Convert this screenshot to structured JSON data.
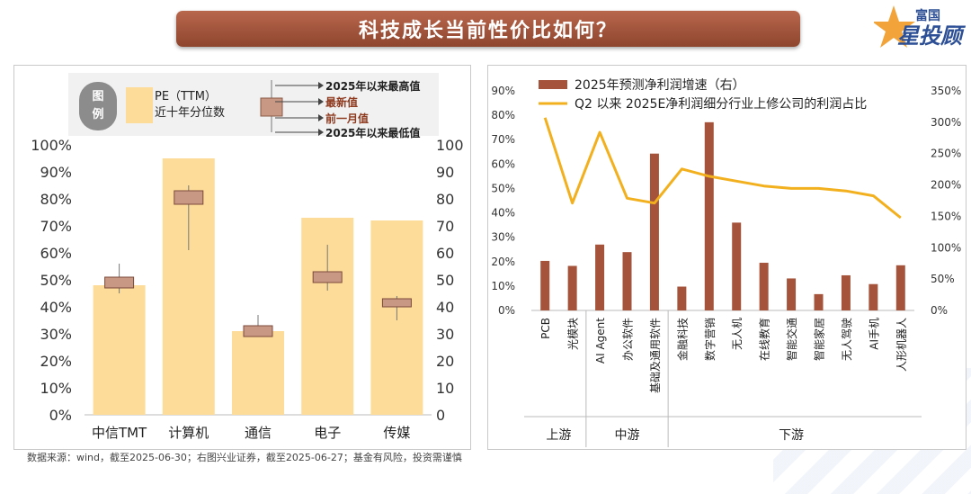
{
  "title": "科技成长当前性价比如何？",
  "logo": {
    "top": "富国",
    "bottom": "星投顾"
  },
  "source": "数据来源：wind，截至2025-06-30；右图兴业证券，截至2025-06-27；基金有风险，投资需谨慎",
  "colors": {
    "bar": "#fddc9a",
    "box": "#c89884",
    "line": "#f2b01e",
    "rbar": "#a5543b",
    "title": "#a85a40"
  },
  "chart_data": [
    {
      "type": "bar",
      "legend": {
        "label": "图例",
        "bar_label": [
          "PE（TTM）",
          "近十年分位数"
        ],
        "max_label": "2025年以来最高值",
        "latest_label": "最新值",
        "month_label": "前一月值",
        "min_label": "2025年以来最低值"
      },
      "categories": [
        "中信TMT",
        "计算机",
        "通信",
        "电子",
        "传媒"
      ],
      "series": [
        {
          "values": [
            48,
            95,
            31,
            73,
            72
          ]
        }
      ],
      "candles": [
        {
          "max": 56,
          "top": 51,
          "bottom": 47,
          "min": 45
        },
        {
          "max": 85,
          "top": 83,
          "bottom": 78,
          "min": 61
        },
        {
          "max": 37,
          "top": 33,
          "bottom": 29,
          "min": 29
        },
        {
          "max": 63,
          "top": 53,
          "bottom": 49,
          "min": 46
        },
        {
          "max": 44,
          "top": 43,
          "bottom": 40,
          "min": 35
        }
      ],
      "y_left_ticks": [
        "0%",
        "10%",
        "20%",
        "30%",
        "40%",
        "50%",
        "60%",
        "70%",
        "80%",
        "90%",
        "100%"
      ],
      "y_right_ticks": [
        "0",
        "10",
        "20",
        "30",
        "40",
        "50",
        "60",
        "70",
        "80",
        "90",
        "100"
      ],
      "ylim": [
        0,
        100
      ]
    },
    {
      "type": "bar+line",
      "categories": [
        "PCB",
        "光模块",
        "AI Agent",
        "办公软件",
        "基础及通用软件",
        "金融科技",
        "数字营销",
        "无人机",
        "在线教育",
        "智能交通",
        "智能家居",
        "无人驾驶",
        "AI手机",
        "人形机器人"
      ],
      "groups": [
        {
          "label": "上游",
          "count": 2
        },
        {
          "label": "中游",
          "count": 3
        },
        {
          "label": "下游",
          "count": 9
        }
      ],
      "series": [
        {
          "name": "2025年预测净利润增速（右）",
          "type": "bar",
          "axis": "right",
          "values": [
            79,
            71,
            105,
            93,
            250,
            38,
            300,
            140,
            76,
            51,
            26,
            56,
            42,
            72
          ]
        },
        {
          "name": "Q2 以来 2025E净利润细分行业上修公司的利润占比",
          "type": "line",
          "axis": "left",
          "values": [
            0.79,
            0.44,
            0.73,
            0.46,
            0.44,
            0.58,
            0.55,
            0.53,
            0.51,
            0.5,
            0.5,
            0.49,
            0.47,
            0.38
          ]
        }
      ],
      "y_left_ticks": [
        "0%",
        "10%",
        "20%",
        "30%",
        "40%",
        "50%",
        "60%",
        "70%",
        "80%",
        "90%"
      ],
      "y_right_ticks": [
        "0%",
        "50%",
        "100%",
        "150%",
        "200%",
        "250%",
        "300%",
        "350%"
      ],
      "ylim_left": [
        0,
        0.9
      ],
      "ylim_right": [
        0,
        350
      ]
    }
  ]
}
